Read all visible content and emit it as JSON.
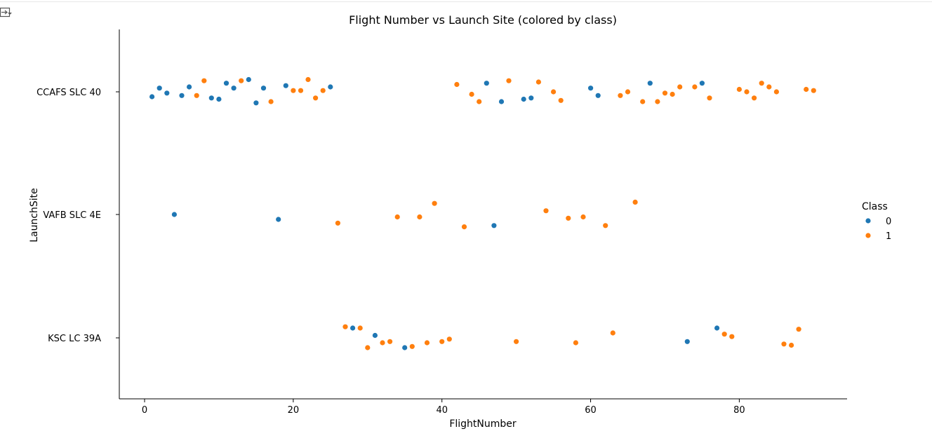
{
  "toolbar": {
    "output_toggle_icon": "output-collapse-icon"
  },
  "chart_data": {
    "type": "scatter",
    "title": "Flight Number vs Launch Site (colored by class)",
    "xlabel": "FlightNumber",
    "ylabel": "LaunchSite",
    "categories": [
      "CCAFS SLC 40",
      "VAFB SLC 4E",
      "KSC LC 39A"
    ],
    "xlim": [
      -3.4,
      94.5
    ],
    "xticks": [
      0,
      20,
      40,
      60,
      80
    ],
    "grid": false,
    "legend": {
      "title": "Class",
      "placement": "right",
      "entries": [
        "0",
        "1"
      ]
    },
    "colors": {
      "0": "#1f77b4",
      "1": "#ff7f0e"
    },
    "series": [
      {
        "name": "0",
        "points": [
          {
            "x": 1,
            "site": "CCAFS SLC 40",
            "jitter": -0.04
          },
          {
            "x": 2,
            "site": "CCAFS SLC 40",
            "jitter": 0.03
          },
          {
            "x": 3,
            "site": "CCAFS SLC 40",
            "jitter": -0.01
          },
          {
            "x": 4,
            "site": "VAFB SLC 4E",
            "jitter": 0.0
          },
          {
            "x": 5,
            "site": "CCAFS SLC 40",
            "jitter": -0.03
          },
          {
            "x": 6,
            "site": "CCAFS SLC 40",
            "jitter": 0.04
          },
          {
            "x": 9,
            "site": "CCAFS SLC 40",
            "jitter": -0.05
          },
          {
            "x": 10,
            "site": "CCAFS SLC 40",
            "jitter": -0.06
          },
          {
            "x": 11,
            "site": "CCAFS SLC 40",
            "jitter": 0.07
          },
          {
            "x": 12,
            "site": "CCAFS SLC 40",
            "jitter": 0.03
          },
          {
            "x": 14,
            "site": "CCAFS SLC 40",
            "jitter": 0.1
          },
          {
            "x": 15,
            "site": "CCAFS SLC 40",
            "jitter": -0.09
          },
          {
            "x": 16,
            "site": "CCAFS SLC 40",
            "jitter": 0.03
          },
          {
            "x": 18,
            "site": "VAFB SLC 4E",
            "jitter": -0.04
          },
          {
            "x": 19,
            "site": "CCAFS SLC 40",
            "jitter": 0.05
          },
          {
            "x": 25,
            "site": "CCAFS SLC 40",
            "jitter": 0.04
          },
          {
            "x": 28,
            "site": "KSC LC 39A",
            "jitter": 0.08
          },
          {
            "x": 31,
            "site": "KSC LC 39A",
            "jitter": 0.02
          },
          {
            "x": 35,
            "site": "KSC LC 39A",
            "jitter": -0.08
          },
          {
            "x": 46,
            "site": "CCAFS SLC 40",
            "jitter": 0.07
          },
          {
            "x": 47,
            "site": "VAFB SLC 4E",
            "jitter": -0.09
          },
          {
            "x": 48,
            "site": "CCAFS SLC 40",
            "jitter": -0.08
          },
          {
            "x": 51,
            "site": "CCAFS SLC 40",
            "jitter": -0.06
          },
          {
            "x": 52,
            "site": "CCAFS SLC 40",
            "jitter": -0.05
          },
          {
            "x": 60,
            "site": "CCAFS SLC 40",
            "jitter": 0.03
          },
          {
            "x": 61,
            "site": "CCAFS SLC 40",
            "jitter": -0.03
          },
          {
            "x": 68,
            "site": "CCAFS SLC 40",
            "jitter": 0.07
          },
          {
            "x": 73,
            "site": "KSC LC 39A",
            "jitter": -0.03
          },
          {
            "x": 75,
            "site": "CCAFS SLC 40",
            "jitter": 0.07
          },
          {
            "x": 77,
            "site": "KSC LC 39A",
            "jitter": 0.08
          }
        ]
      },
      {
        "name": "1",
        "points": [
          {
            "x": 7,
            "site": "CCAFS SLC 40",
            "jitter": -0.03
          },
          {
            "x": 8,
            "site": "CCAFS SLC 40",
            "jitter": 0.09
          },
          {
            "x": 13,
            "site": "CCAFS SLC 40",
            "jitter": 0.09
          },
          {
            "x": 17,
            "site": "CCAFS SLC 40",
            "jitter": -0.08
          },
          {
            "x": 20,
            "site": "CCAFS SLC 40",
            "jitter": 0.01
          },
          {
            "x": 21,
            "site": "CCAFS SLC 40",
            "jitter": 0.01
          },
          {
            "x": 22,
            "site": "CCAFS SLC 40",
            "jitter": 0.1
          },
          {
            "x": 23,
            "site": "CCAFS SLC 40",
            "jitter": -0.05
          },
          {
            "x": 24,
            "site": "CCAFS SLC 40",
            "jitter": 0.01
          },
          {
            "x": 26,
            "site": "VAFB SLC 4E",
            "jitter": -0.07
          },
          {
            "x": 27,
            "site": "KSC LC 39A",
            "jitter": 0.09
          },
          {
            "x": 29,
            "site": "KSC LC 39A",
            "jitter": 0.08
          },
          {
            "x": 30,
            "site": "KSC LC 39A",
            "jitter": -0.08
          },
          {
            "x": 32,
            "site": "KSC LC 39A",
            "jitter": -0.04
          },
          {
            "x": 33,
            "site": "KSC LC 39A",
            "jitter": -0.03
          },
          {
            "x": 34,
            "site": "VAFB SLC 4E",
            "jitter": -0.02
          },
          {
            "x": 36,
            "site": "KSC LC 39A",
            "jitter": -0.07
          },
          {
            "x": 37,
            "site": "VAFB SLC 4E",
            "jitter": -0.02
          },
          {
            "x": 38,
            "site": "KSC LC 39A",
            "jitter": -0.04
          },
          {
            "x": 39,
            "site": "VAFB SLC 4E",
            "jitter": 0.09
          },
          {
            "x": 40,
            "site": "KSC LC 39A",
            "jitter": -0.03
          },
          {
            "x": 41,
            "site": "KSC LC 39A",
            "jitter": -0.01
          },
          {
            "x": 42,
            "site": "CCAFS SLC 40",
            "jitter": 0.06
          },
          {
            "x": 43,
            "site": "VAFB SLC 4E",
            "jitter": -0.1
          },
          {
            "x": 44,
            "site": "CCAFS SLC 40",
            "jitter": -0.02
          },
          {
            "x": 45,
            "site": "CCAFS SLC 40",
            "jitter": -0.08
          },
          {
            "x": 49,
            "site": "CCAFS SLC 40",
            "jitter": 0.09
          },
          {
            "x": 50,
            "site": "KSC LC 39A",
            "jitter": -0.03
          },
          {
            "x": 53,
            "site": "CCAFS SLC 40",
            "jitter": 0.08
          },
          {
            "x": 54,
            "site": "VAFB SLC 4E",
            "jitter": 0.03
          },
          {
            "x": 55,
            "site": "CCAFS SLC 40",
            "jitter": 0.0
          },
          {
            "x": 56,
            "site": "CCAFS SLC 40",
            "jitter": -0.07
          },
          {
            "x": 57,
            "site": "VAFB SLC 4E",
            "jitter": -0.03
          },
          {
            "x": 58,
            "site": "KSC LC 39A",
            "jitter": -0.04
          },
          {
            "x": 59,
            "site": "VAFB SLC 4E",
            "jitter": -0.02
          },
          {
            "x": 62,
            "site": "VAFB SLC 4E",
            "jitter": -0.09
          },
          {
            "x": 63,
            "site": "KSC LC 39A",
            "jitter": 0.04
          },
          {
            "x": 64,
            "site": "CCAFS SLC 40",
            "jitter": -0.03
          },
          {
            "x": 65,
            "site": "CCAFS SLC 40",
            "jitter": 0.0
          },
          {
            "x": 66,
            "site": "VAFB SLC 4E",
            "jitter": 0.1
          },
          {
            "x": 67,
            "site": "CCAFS SLC 40",
            "jitter": -0.08
          },
          {
            "x": 69,
            "site": "CCAFS SLC 40",
            "jitter": -0.08
          },
          {
            "x": 70,
            "site": "CCAFS SLC 40",
            "jitter": -0.01
          },
          {
            "x": 71,
            "site": "CCAFS SLC 40",
            "jitter": -0.02
          },
          {
            "x": 72,
            "site": "CCAFS SLC 40",
            "jitter": 0.04
          },
          {
            "x": 74,
            "site": "CCAFS SLC 40",
            "jitter": 0.04
          },
          {
            "x": 76,
            "site": "CCAFS SLC 40",
            "jitter": -0.05
          },
          {
            "x": 78,
            "site": "KSC LC 39A",
            "jitter": 0.03
          },
          {
            "x": 79,
            "site": "KSC LC 39A",
            "jitter": 0.01
          },
          {
            "x": 80,
            "site": "CCAFS SLC 40",
            "jitter": 0.02
          },
          {
            "x": 81,
            "site": "CCAFS SLC 40",
            "jitter": 0.0
          },
          {
            "x": 82,
            "site": "CCAFS SLC 40",
            "jitter": -0.05
          },
          {
            "x": 83,
            "site": "CCAFS SLC 40",
            "jitter": 0.07
          },
          {
            "x": 84,
            "site": "CCAFS SLC 40",
            "jitter": 0.04
          },
          {
            "x": 85,
            "site": "CCAFS SLC 40",
            "jitter": 0.0
          },
          {
            "x": 86,
            "site": "KSC LC 39A",
            "jitter": -0.05
          },
          {
            "x": 87,
            "site": "KSC LC 39A",
            "jitter": -0.06
          },
          {
            "x": 88,
            "site": "KSC LC 39A",
            "jitter": 0.07
          },
          {
            "x": 89,
            "site": "CCAFS SLC 40",
            "jitter": 0.02
          },
          {
            "x": 90,
            "site": "CCAFS SLC 40",
            "jitter": 0.01
          }
        ]
      }
    ]
  }
}
